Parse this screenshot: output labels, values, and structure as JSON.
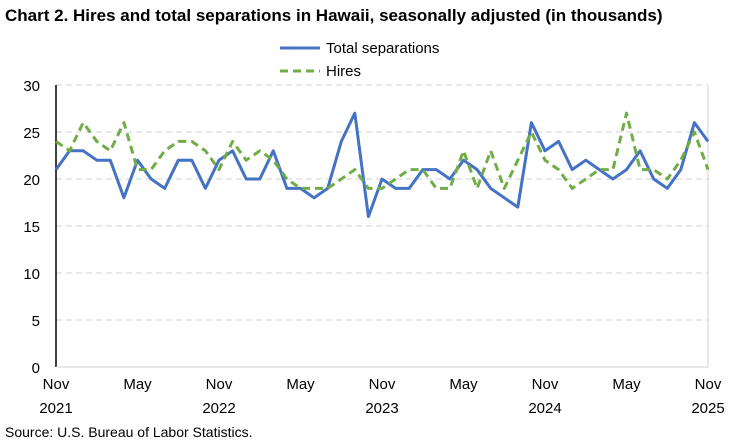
{
  "chart_data": {
    "type": "line",
    "title": "Chart 2. Hires and total separations in Hawaii, seasonally adjusted (in thousands)",
    "source": "Source: U.S. Bureau of Labor Statistics.",
    "x_start": "Nov 2021",
    "x_end": "Nov 2025",
    "x_ticks": [
      {
        "month": "Nov",
        "year": "2021",
        "index": 0
      },
      {
        "month": "May",
        "year": "",
        "index": 6
      },
      {
        "month": "Nov",
        "year": "2022",
        "index": 12
      },
      {
        "month": "May",
        "year": "",
        "index": 18
      },
      {
        "month": "Nov",
        "year": "2023",
        "index": 24
      },
      {
        "month": "May",
        "year": "",
        "index": 30
      },
      {
        "month": "Nov",
        "year": "2024",
        "index": 36
      },
      {
        "month": "May",
        "year": "",
        "index": 42
      },
      {
        "month": "Nov",
        "year": "2025",
        "index": 48
      }
    ],
    "ylim": [
      0,
      30
    ],
    "y_ticks": [
      0,
      5,
      10,
      15,
      20,
      25,
      30
    ],
    "grid": "horizontal dashed",
    "legend": "top-center",
    "series": [
      {
        "name": "Total separations",
        "color": "#4472C4",
        "style": "solid",
        "values": [
          21,
          23,
          23,
          22,
          22,
          18,
          22,
          20,
          19,
          22,
          22,
          19,
          22,
          23,
          20,
          20,
          23,
          19,
          19,
          18,
          19,
          24,
          27,
          16,
          20,
          19,
          19,
          21,
          21,
          20,
          22,
          21,
          19,
          18,
          17,
          26,
          23,
          24,
          21,
          22,
          21,
          20,
          21,
          23,
          20,
          19,
          21,
          26,
          24
        ]
      },
      {
        "name": "Hires",
        "color": "#70AD47",
        "style": "dashed",
        "values": [
          24,
          23,
          26,
          24,
          23,
          26,
          21,
          21,
          23,
          24,
          24,
          23,
          21,
          24,
          22,
          23,
          22,
          20,
          19,
          19,
          19,
          20,
          21,
          19,
          19,
          20,
          21,
          21,
          19,
          19,
          23,
          19,
          23,
          19,
          22,
          25,
          22,
          21,
          19,
          20,
          21,
          21,
          27,
          21,
          21,
          20,
          22,
          25,
          21
        ]
      }
    ]
  }
}
